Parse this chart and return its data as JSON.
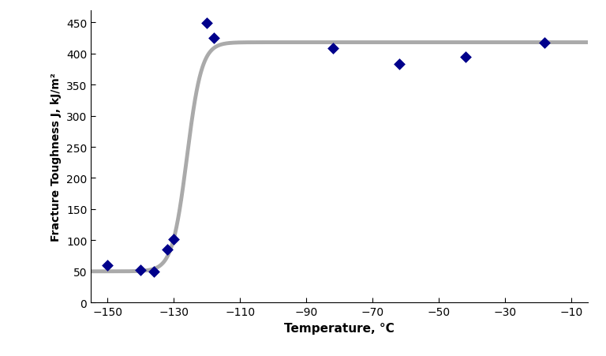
{
  "scatter_x": [
    -150,
    -140,
    -136,
    -132,
    -130,
    -120,
    -118,
    -82,
    -62,
    -42,
    -18
  ],
  "scatter_y": [
    60,
    52,
    50,
    85,
    102,
    449,
    425,
    408,
    383,
    395,
    418
  ],
  "curve_params": {
    "lower": 50,
    "upper": 418,
    "midpoint": -126,
    "rate": 0.45
  },
  "scatter_color": "#00008B",
  "curve_color": "#aaaaaa",
  "curve_linewidth": 3.5,
  "marker": "D",
  "marker_size": 7,
  "xlabel": "Temperature, °C",
  "ylabel": "Fracture Toughness J, kJ/m²",
  "xlim": [
    -155,
    -5
  ],
  "ylim": [
    0,
    470
  ],
  "xticks": [
    -150,
    -130,
    -110,
    -90,
    -70,
    -50,
    -30,
    -10
  ],
  "yticks": [
    0,
    50,
    100,
    150,
    200,
    250,
    300,
    350,
    400,
    450
  ],
  "xlabel_fontsize": 11,
  "ylabel_fontsize": 10,
  "tick_fontsize": 10,
  "background_color": "#ffffff",
  "fig_width": 7.68,
  "fig_height": 4.52,
  "dpi": 100
}
